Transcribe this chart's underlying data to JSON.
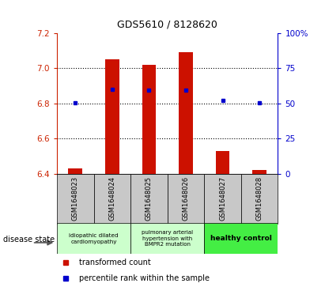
{
  "title": "GDS5610 / 8128620",
  "samples": [
    "GSM1648023",
    "GSM1648024",
    "GSM1648025",
    "GSM1648026",
    "GSM1648027",
    "GSM1648028"
  ],
  "bar_values": [
    6.43,
    7.05,
    7.02,
    7.09,
    6.53,
    6.42
  ],
  "bar_bottom": 6.4,
  "percentile_values": [
    6.805,
    6.878,
    6.875,
    6.876,
    6.815,
    6.805
  ],
  "ylim_left": [
    6.4,
    7.2
  ],
  "ylim_right": [
    0,
    100
  ],
  "yticks_left": [
    6.4,
    6.6,
    6.8,
    7.0,
    7.2
  ],
  "yticks_right": [
    0,
    25,
    50,
    75,
    100
  ],
  "bar_color": "#cc1100",
  "dot_color": "#0000cc",
  "legend_bar_label": "transformed count",
  "legend_dot_label": "percentile rank within the sample",
  "disease_state_label": "disease state",
  "left_color": "#cc2200",
  "right_color": "#0000cc",
  "background_color": "#ffffff",
  "sample_bg": "#c8c8c8",
  "group1_color": "#ccffcc",
  "group2_color": "#ccffcc",
  "group3_color": "#44ee44",
  "grid_dotted_vals": [
    6.6,
    6.8,
    7.0
  ],
  "group1_label": "idiopathic dilated\ncardiomyopathy",
  "group2_label": "pulmonary arterial\nhypertension with\nBMPR2 mutation",
  "group3_label": "healthy control"
}
